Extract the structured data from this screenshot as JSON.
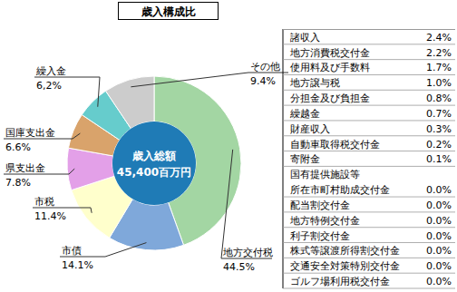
{
  "chart_data": {
    "type": "pie",
    "title": "歳入構成比",
    "categories": [
      "地方交付税",
      "市債",
      "市税",
      "県支出金",
      "国庫支出金",
      "繰入金",
      "その他"
    ],
    "values": [
      44.5,
      14.1,
      11.4,
      7.8,
      6.6,
      6.2,
      9.4
    ],
    "value_labels": [
      "44.5%",
      "14.1%",
      "11.4%",
      "7.8%",
      "6.6%",
      "6,2%",
      "9.4%"
    ],
    "colors": [
      "#a3d6a3",
      "#7fa8da",
      "#ffffcc",
      "#e3a0e8",
      "#d9a36b",
      "#66cccc",
      "#cccccc"
    ],
    "data_labels": true,
    "annotations": [
      "歳入総額",
      "45,400百万円"
    ]
  },
  "table": {
    "rows": [
      {
        "name": "諸収入",
        "value": "2.4%"
      },
      {
        "name": "地方消費税交付金",
        "value": "2.2%"
      },
      {
        "name": "使用料及び手数料",
        "value": "1.7%"
      },
      {
        "name": "地方譲与税",
        "value": "1.0%"
      },
      {
        "name": "分担金及び負担金",
        "value": "0.8%"
      },
      {
        "name": "繰越金",
        "value": "0.7%"
      },
      {
        "name": "財産収入",
        "value": "0.3%"
      },
      {
        "name": "自動車取得税交付金",
        "value": "0.2%"
      },
      {
        "name": "寄附金",
        "value": "0.1%"
      },
      {
        "name": "国有提供施設等\n所在市町村助成交付金",
        "value": "0.0%"
      },
      {
        "name": "配当割交付金",
        "value": "0.0%"
      },
      {
        "name": "地方特例交付金",
        "value": "0.0%"
      },
      {
        "name": "利子割交付金",
        "value": "0.0%"
      },
      {
        "name": "株式等譲渡所得割交付金",
        "value": "0.0%"
      },
      {
        "name": "交通安全対策特別交付金",
        "value": "0.0%"
      },
      {
        "name": "ゴルフ場利用税交付金",
        "value": "0.0%"
      }
    ]
  }
}
